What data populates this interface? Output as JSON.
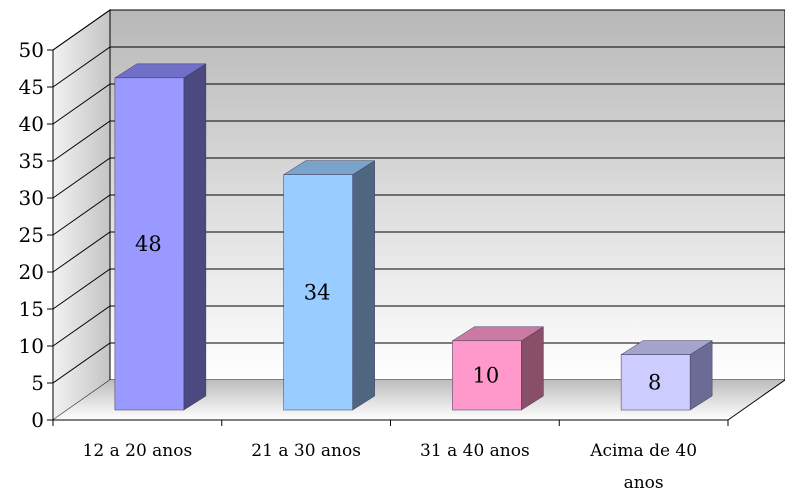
{
  "chart_data": {
    "type": "bar",
    "title": "",
    "xlabel": "",
    "ylabel": "",
    "categories": [
      "12 a 20 anos",
      "21 a 30 anos",
      "31 a 40 anos",
      "Acima de 40 anos"
    ],
    "category_label_lines": [
      [
        "12 a 20 anos"
      ],
      [
        "21 a 30 anos"
      ],
      [
        "31 a 40 anos"
      ],
      [
        "Acima de 40",
        "anos"
      ]
    ],
    "values": [
      48,
      34,
      10,
      8
    ],
    "data_labels": [
      "48",
      "34",
      "10",
      "8"
    ],
    "ylim": [
      0,
      50
    ],
    "yticks": [
      0,
      5,
      10,
      15,
      20,
      25,
      30,
      35,
      40,
      45,
      50
    ],
    "ytick_labels": [
      "0",
      "5",
      "10",
      "15",
      "20",
      "25",
      "30",
      "35",
      "40",
      "45",
      "50"
    ],
    "grid": true,
    "legend": "none",
    "three_d": true,
    "colors": [
      {
        "front": "#9999ff",
        "top": "#7070c8",
        "side": "#4b4980"
      },
      {
        "front": "#99ccff",
        "top": "#7aa3cc",
        "side": "#4f6680"
      },
      {
        "front": "#ff99cc",
        "top": "#cc7aa3",
        "side": "#8a4f68"
      },
      {
        "front": "#ccccff",
        "top": "#a3a3cc",
        "side": "#6b6b96"
      }
    ]
  }
}
